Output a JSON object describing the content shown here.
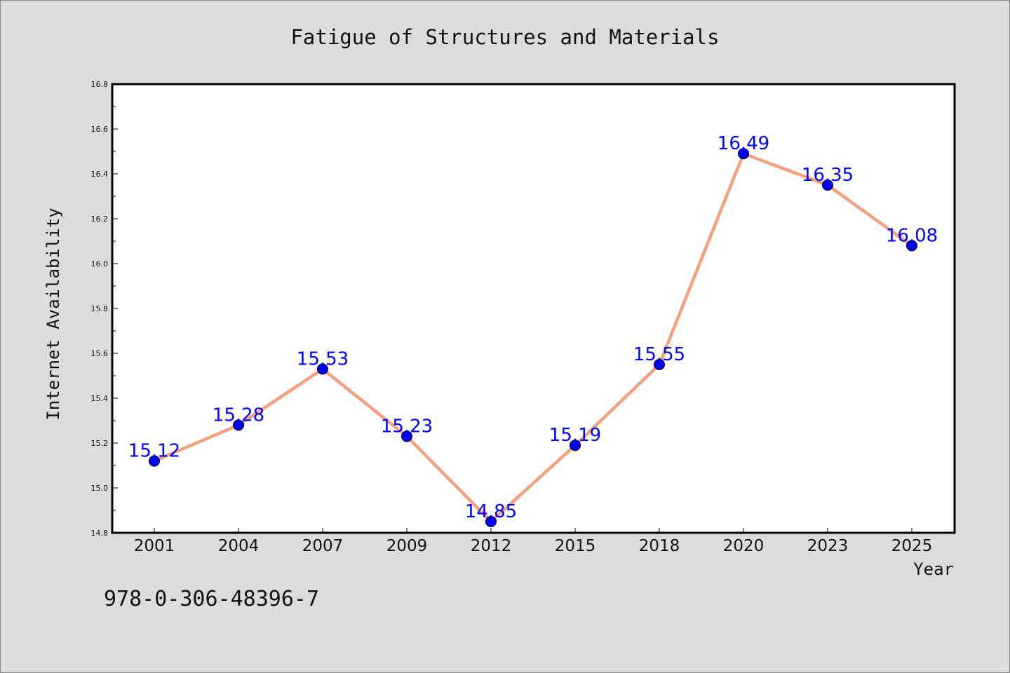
{
  "chart_data": {
    "type": "line",
    "title": "Fatigue of Structures and Materials",
    "xlabel": "Year",
    "ylabel": "Internet Availability",
    "categories": [
      "2001",
      "2004",
      "2007",
      "2009",
      "2012",
      "2015",
      "2018",
      "2020",
      "2023",
      "2025"
    ],
    "values": [
      15.12,
      15.28,
      15.53,
      15.23,
      14.85,
      15.19,
      15.55,
      16.49,
      16.35,
      16.08
    ],
    "data_labels": [
      "15.12",
      "15.28",
      "15.53",
      "15.23",
      "14.85",
      "15.19",
      "15.55",
      "16.49",
      "16.35",
      "16.08"
    ],
    "ylim": [
      14.8,
      16.8
    ],
    "yticks": [
      "14.8",
      "15.0",
      "15.2",
      "15.4",
      "15.6",
      "15.8",
      "16.0",
      "16.2",
      "16.4",
      "16.6",
      "16.8"
    ],
    "grid": false,
    "legend": "none",
    "colors": {
      "line": "#f4a07c",
      "marker": "#0000ff",
      "label": "#0000ff",
      "background": "#dcdcdc",
      "plot_background": "#ffffff"
    }
  },
  "annotation": "978-0-306-48396-7"
}
